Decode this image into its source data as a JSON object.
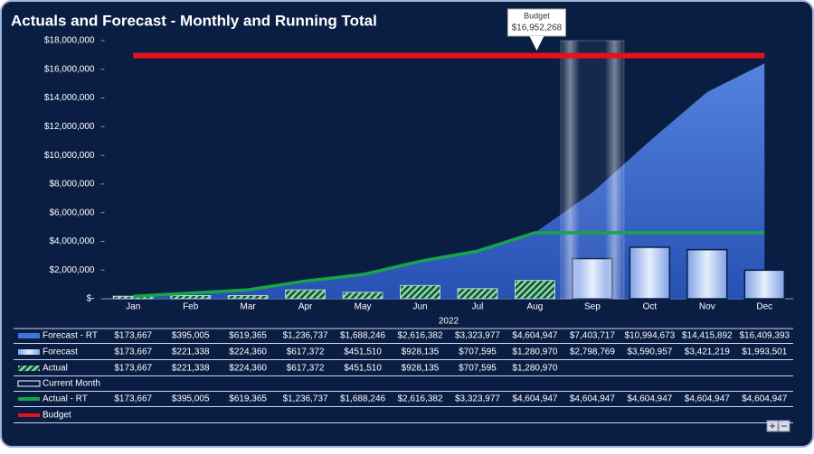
{
  "chart_data": {
    "type": "combo",
    "title": "Actuals and Forecast - Monthly and Running Total",
    "x_label": "2022",
    "categories": [
      "Jan",
      "Feb",
      "Mar",
      "Apr",
      "May",
      "Jun",
      "Jul",
      "Aug",
      "Sep",
      "Oct",
      "Nov",
      "Dec"
    ],
    "ylim": [
      0,
      18000000
    ],
    "yticks": [
      {
        "value": 0,
        "label": "$-"
      },
      {
        "value": 2000000,
        "label": "$2,000,000"
      },
      {
        "value": 4000000,
        "label": "$4,000,000"
      },
      {
        "value": 6000000,
        "label": "$6,000,000"
      },
      {
        "value": 8000000,
        "label": "$8,000,000"
      },
      {
        "value": 10000000,
        "label": "$10,000,000"
      },
      {
        "value": 12000000,
        "label": "$12,000,000"
      },
      {
        "value": 14000000,
        "label": "$14,000,000"
      },
      {
        "value": 16000000,
        "label": "$16,000,000"
      },
      {
        "value": 18000000,
        "label": "$18,000,000"
      }
    ],
    "series": [
      {
        "name": "Forecast - RT",
        "kind": "area",
        "color": "#3f74d9",
        "values": [
          173667,
          395005,
          619365,
          1236737,
          1688246,
          2616382,
          3323977,
          4604947,
          7403717,
          10994673,
          14415892,
          16409393
        ],
        "value_labels": [
          "$173,667",
          "$395,005",
          "$619,365",
          "$1,236,737",
          "$1,688,246",
          "$2,616,382",
          "$3,323,977",
          "$4,604,947",
          "$7,403,717",
          "$10,994,673",
          "$14,415,892",
          "$16,409,393"
        ]
      },
      {
        "name": "Forecast",
        "kind": "bar",
        "color": "#c9d8f5",
        "values": [
          173667,
          221338,
          224360,
          617372,
          451510,
          928135,
          707595,
          1280970,
          2798769,
          3590957,
          3421219,
          1993501
        ],
        "value_labels": [
          "$173,667",
          "$221,338",
          "$224,360",
          "$617,372",
          "$451,510",
          "$928,135",
          "$707,595",
          "$1,280,970",
          "$2,798,769",
          "$3,590,957",
          "$3,421,219",
          "$1,993,501"
        ]
      },
      {
        "name": "Actual",
        "kind": "hatch",
        "color": "#6fd08c",
        "values": [
          173667,
          221338,
          224360,
          617372,
          451510,
          928135,
          707595,
          1280970,
          null,
          null,
          null,
          null
        ],
        "value_labels": [
          "$173,667",
          "$221,338",
          "$224,360",
          "$617,372",
          "$451,510",
          "$928,135",
          "$707,595",
          "$1,280,970",
          null,
          null,
          null,
          null
        ]
      },
      {
        "name": "Current Month",
        "kind": "highlight",
        "color": "#ffffff",
        "values": [
          null,
          null,
          null,
          null,
          null,
          null,
          null,
          null,
          18000000,
          null,
          null,
          null
        ]
      },
      {
        "name": "Actual - RT",
        "kind": "line",
        "color": "#16a54a",
        "values": [
          173667,
          395005,
          619365,
          1236737,
          1688246,
          2616382,
          3323977,
          4604947,
          4604947,
          4604947,
          4604947,
          4604947
        ],
        "value_labels": [
          "$173,667",
          "$395,005",
          "$619,365",
          "$1,236,737",
          "$1,688,246",
          "$2,616,382",
          "$3,323,977",
          "$4,604,947",
          "$4,604,947",
          "$4,604,947",
          "$4,604,947",
          "$4,604,947"
        ]
      },
      {
        "name": "Budget",
        "kind": "budget",
        "color": "#e8121b",
        "values": [
          16952268,
          16952268,
          16952268,
          16952268,
          16952268,
          16952268,
          16952268,
          16952268,
          16952268,
          16952268,
          16952268,
          16952268
        ]
      }
    ],
    "annotation": {
      "title": "Budget",
      "label": "$16,952,268",
      "category": 7
    }
  }
}
